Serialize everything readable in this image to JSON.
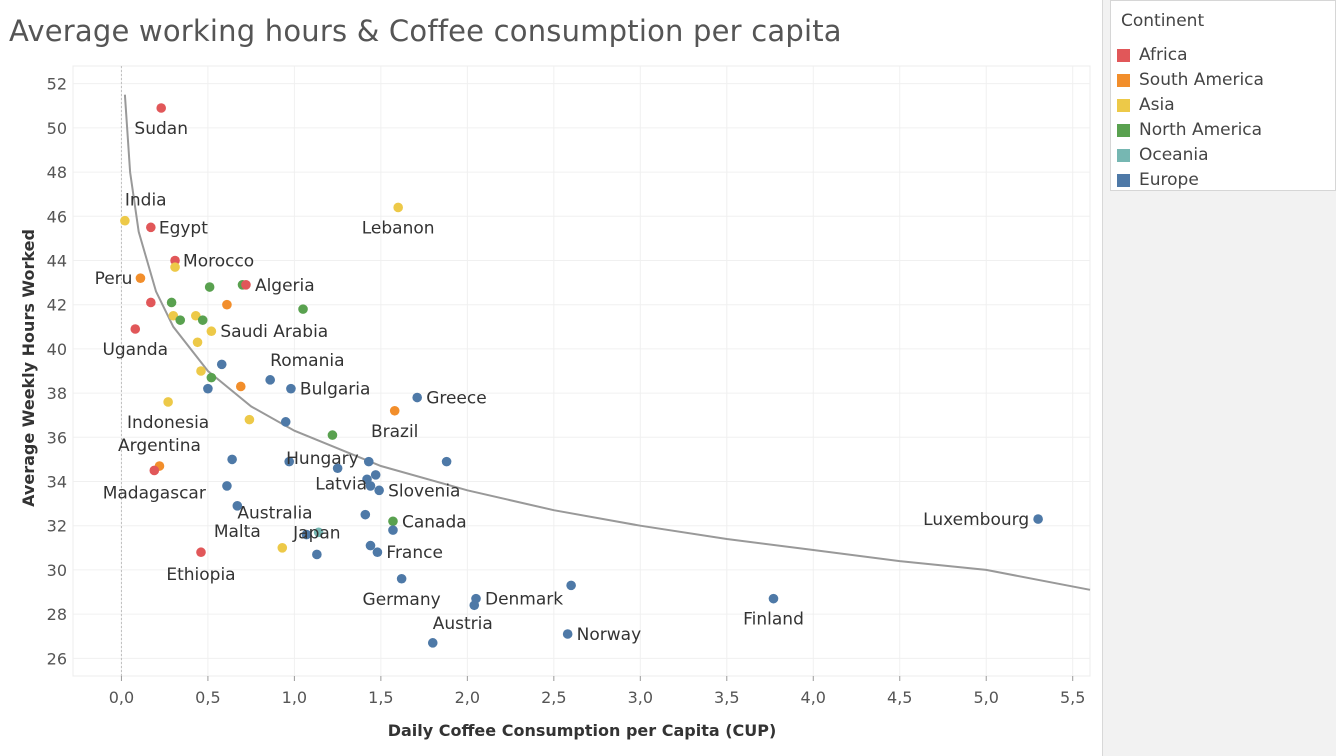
{
  "title": "Average working hours & Coffee consumption per capita",
  "legend": {
    "title": "Continent",
    "items": [
      {
        "label": "Africa",
        "color": "#e15759"
      },
      {
        "label": "South America",
        "color": "#f28e2b"
      },
      {
        "label": "Asia",
        "color": "#edc948"
      },
      {
        "label": "North America",
        "color": "#59a14f"
      },
      {
        "label": "Oceania",
        "color": "#76b7b2"
      },
      {
        "label": "Europe",
        "color": "#4e79a7"
      }
    ]
  },
  "chart_data": {
    "type": "scatter",
    "title": "Average working hours & Coffee consumption per capita",
    "xlabel": "Daily Coffee Consumption per Capita (CUP)",
    "ylabel": "Average Weekly Hours Worked",
    "xlim": [
      -0.28,
      5.6
    ],
    "ylim": [
      25.2,
      52.8
    ],
    "xticks": [
      0.0,
      0.5,
      1.0,
      1.5,
      2.0,
      2.5,
      3.0,
      3.5,
      4.0,
      4.5,
      5.0,
      5.5
    ],
    "xtick_labels": [
      "0,0",
      "0,5",
      "1,0",
      "1,5",
      "2,0",
      "2,5",
      "3,0",
      "3,5",
      "4,0",
      "4,5",
      "5,0",
      "5,5"
    ],
    "yticks": [
      26,
      28,
      30,
      32,
      34,
      36,
      38,
      40,
      42,
      44,
      46,
      48,
      50,
      52
    ],
    "ytick_labels": [
      "26",
      "28",
      "30",
      "32",
      "34",
      "36",
      "38",
      "40",
      "42",
      "44",
      "46",
      "48",
      "50",
      "52"
    ],
    "grid": true,
    "legend_position": "right",
    "colors": {
      "Africa": "#e15759",
      "South America": "#f28e2b",
      "Asia": "#edc948",
      "North America": "#59a14f",
      "Oceania": "#76b7b2",
      "Europe": "#4e79a7"
    },
    "trendline": {
      "style": "logarithmic",
      "color": "#999999",
      "points": [
        [
          0.02,
          51.5
        ],
        [
          0.05,
          48.0
        ],
        [
          0.1,
          45.3
        ],
        [
          0.2,
          42.6
        ],
        [
          0.3,
          41.0
        ],
        [
          0.5,
          39.0
        ],
        [
          0.75,
          37.4
        ],
        [
          1.0,
          36.3
        ],
        [
          1.5,
          34.7
        ],
        [
          2.0,
          33.6
        ],
        [
          2.5,
          32.7
        ],
        [
          3.0,
          32.0
        ],
        [
          3.5,
          31.4
        ],
        [
          4.0,
          30.9
        ],
        [
          4.5,
          30.4
        ],
        [
          5.0,
          30.0
        ],
        [
          5.6,
          29.1
        ]
      ]
    },
    "points": [
      {
        "label": "Sudan",
        "continent": "Africa",
        "x": 0.23,
        "y": 50.9
      },
      {
        "label": "India",
        "continent": "Asia",
        "x": 0.02,
        "y": 45.8
      },
      {
        "label": "Egypt",
        "continent": "Africa",
        "x": 0.17,
        "y": 45.5
      },
      {
        "label": "Lebanon",
        "continent": "Asia",
        "x": 1.6,
        "y": 46.4
      },
      {
        "label": "Morocco",
        "continent": "Africa",
        "x": 0.31,
        "y": 44.0
      },
      {
        "label": "",
        "continent": "Asia",
        "x": 0.31,
        "y": 43.7
      },
      {
        "label": "Peru",
        "continent": "South America",
        "x": 0.11,
        "y": 43.2
      },
      {
        "label": "",
        "continent": "North America",
        "x": 0.51,
        "y": 42.8
      },
      {
        "label": "",
        "continent": "North America",
        "x": 0.7,
        "y": 42.9
      },
      {
        "label": "Algeria",
        "continent": "Africa",
        "x": 0.72,
        "y": 42.9
      },
      {
        "label": "",
        "continent": "Africa",
        "x": 0.17,
        "y": 42.1
      },
      {
        "label": "",
        "continent": "North America",
        "x": 0.29,
        "y": 42.1
      },
      {
        "label": "",
        "continent": "South America",
        "x": 0.61,
        "y": 42.0
      },
      {
        "label": "",
        "continent": "North America",
        "x": 1.05,
        "y": 41.8
      },
      {
        "label": "",
        "continent": "Asia",
        "x": 0.3,
        "y": 41.5
      },
      {
        "label": "",
        "continent": "North America",
        "x": 0.34,
        "y": 41.3
      },
      {
        "label": "",
        "continent": "Asia",
        "x": 0.43,
        "y": 41.5
      },
      {
        "label": "",
        "continent": "North America",
        "x": 0.47,
        "y": 41.3
      },
      {
        "label": "Uganda",
        "continent": "Africa",
        "x": 0.08,
        "y": 40.9
      },
      {
        "label": "Saudi Arabia",
        "continent": "Asia",
        "x": 0.52,
        "y": 40.8
      },
      {
        "label": "",
        "continent": "Asia",
        "x": 0.44,
        "y": 40.3
      },
      {
        "label": "",
        "continent": "Europe",
        "x": 0.58,
        "y": 39.3
      },
      {
        "label": "",
        "continent": "Asia",
        "x": 0.46,
        "y": 39.0
      },
      {
        "label": "",
        "continent": "North America",
        "x": 0.52,
        "y": 38.7
      },
      {
        "label": "Romania",
        "continent": "Europe",
        "x": 0.86,
        "y": 38.6
      },
      {
        "label": "",
        "continent": "South America",
        "x": 0.69,
        "y": 38.3
      },
      {
        "label": "",
        "continent": "Europe",
        "x": 0.5,
        "y": 38.2
      },
      {
        "label": "Bulgaria",
        "continent": "Europe",
        "x": 0.98,
        "y": 38.2
      },
      {
        "label": "Greece",
        "continent": "Europe",
        "x": 1.71,
        "y": 37.8
      },
      {
        "label": "Indonesia",
        "continent": "Asia",
        "x": 0.27,
        "y": 37.6
      },
      {
        "label": "Brazil",
        "continent": "South America",
        "x": 1.58,
        "y": 37.2
      },
      {
        "label": "",
        "continent": "Asia",
        "x": 0.74,
        "y": 36.8
      },
      {
        "label": "",
        "continent": "Europe",
        "x": 0.95,
        "y": 36.7
      },
      {
        "label": "Hungary",
        "continent": "North America",
        "x": 1.22,
        "y": 36.1
      },
      {
        "label": "",
        "continent": "Europe",
        "x": 0.64,
        "y": 35.0
      },
      {
        "label": "",
        "continent": "Europe",
        "x": 0.97,
        "y": 34.9
      },
      {
        "label": "",
        "continent": "Europe",
        "x": 1.43,
        "y": 34.9
      },
      {
        "label": "",
        "continent": "Europe",
        "x": 1.88,
        "y": 34.9
      },
      {
        "label": "Argentina",
        "continent": "South America",
        "x": 0.22,
        "y": 34.7
      },
      {
        "label": "Madagascar",
        "continent": "Africa",
        "x": 0.19,
        "y": 34.5
      },
      {
        "label": "",
        "continent": "Europe",
        "x": 1.25,
        "y": 34.6
      },
      {
        "label": "",
        "continent": "Europe",
        "x": 1.47,
        "y": 34.3
      },
      {
        "label": "Latvia",
        "continent": "Europe",
        "x": 1.42,
        "y": 34.1
      },
      {
        "label": "",
        "continent": "Europe",
        "x": 0.61,
        "y": 33.8
      },
      {
        "label": "",
        "continent": "Europe",
        "x": 1.44,
        "y": 33.8
      },
      {
        "label": "Slovenia",
        "continent": "Europe",
        "x": 1.49,
        "y": 33.6
      },
      {
        "label": "Malta",
        "continent": "Europe",
        "x": 0.67,
        "y": 32.9
      },
      {
        "label": "",
        "continent": "Europe",
        "x": 1.41,
        "y": 32.5
      },
      {
        "label": "Canada",
        "continent": "North America",
        "x": 1.57,
        "y": 32.2
      },
      {
        "label": "Australia",
        "continent": "Oceania",
        "x": 1.14,
        "y": 31.7
      },
      {
        "label": "",
        "continent": "Europe",
        "x": 1.57,
        "y": 31.8
      },
      {
        "label": "",
        "continent": "Europe",
        "x": 1.07,
        "y": 31.6
      },
      {
        "label": "",
        "continent": "Europe",
        "x": 1.44,
        "y": 31.1
      },
      {
        "label": "",
        "continent": "Asia",
        "x": 0.93,
        "y": 31.0
      },
      {
        "label": "France",
        "continent": "Europe",
        "x": 1.48,
        "y": 30.8
      },
      {
        "label": "Ethiopia",
        "continent": "Africa",
        "x": 0.46,
        "y": 30.8
      },
      {
        "label": "Japan",
        "continent": "Europe",
        "x": 1.13,
        "y": 30.7
      },
      {
        "label": "Germany",
        "continent": "Europe",
        "x": 1.62,
        "y": 29.6
      },
      {
        "label": "",
        "continent": "Europe",
        "x": 2.6,
        "y": 29.3
      },
      {
        "label": "Denmark",
        "continent": "Europe",
        "x": 2.05,
        "y": 28.7
      },
      {
        "label": "",
        "continent": "Europe",
        "x": 2.04,
        "y": 28.4
      },
      {
        "label": "Finland",
        "continent": "Europe",
        "x": 3.77,
        "y": 28.7
      },
      {
        "label": "Austria",
        "continent": "Europe",
        "x": 1.8,
        "y": 26.7
      },
      {
        "label": "Norway",
        "continent": "Europe",
        "x": 2.58,
        "y": 27.1
      },
      {
        "label": "Luxembourg",
        "continent": "Europe",
        "x": 5.3,
        "y": 32.3
      }
    ]
  }
}
